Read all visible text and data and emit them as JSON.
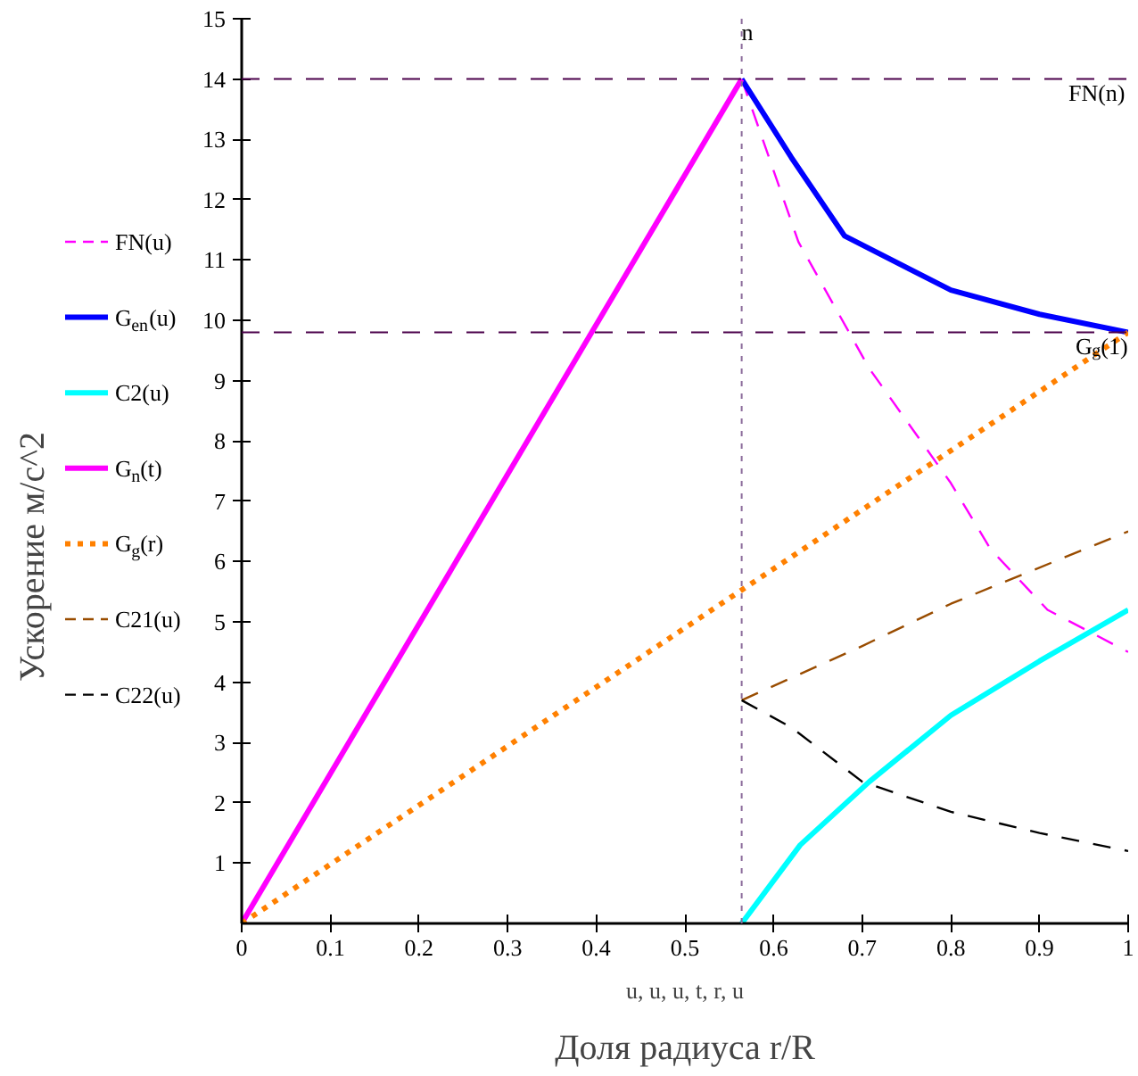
{
  "chart_data": {
    "type": "line",
    "xlabel": "Доля радиуса r/R",
    "ylabel": "Ускорение м/с^2",
    "annotations": [
      "u, u, u, t, r, u"
    ],
    "xlim": [
      0,
      1
    ],
    "ylim": [
      0,
      15
    ],
    "xticks": [
      0,
      0.1,
      0.2,
      0.3,
      0.4,
      0.5,
      0.6,
      0.7,
      0.8,
      0.9,
      1
    ],
    "yticks": [
      1,
      2,
      3,
      4,
      5,
      6,
      7,
      8,
      9,
      10,
      11,
      12,
      13,
      14,
      15
    ],
    "grid": false,
    "legend": "left",
    "marker": "none",
    "series": [
      {
        "name": "FN(u)",
        "color": "#ff00ff",
        "line_style": "dashed",
        "x": [
          0.564,
          0.628,
          0.708,
          0.8,
          0.845,
          0.909,
          1
        ],
        "values": [
          14,
          11.3,
          9.2,
          7.3,
          6.2,
          5.2,
          4.5
        ]
      },
      {
        "name": "G$_{en}$(u)",
        "color": "#0000ff",
        "line_style": "solid",
        "x": [
          0.564,
          0.62,
          0.68,
          0.8,
          0.9,
          1
        ],
        "values": [
          14,
          12.7,
          11.4,
          10.5,
          10.1,
          9.8
        ]
      },
      {
        "name": "C2(u)",
        "color": "#00ffff",
        "line_style": "solid",
        "x": [
          0.564,
          0.63,
          0.708,
          0.8,
          0.9,
          1
        ],
        "values": [
          0,
          1.3,
          2.35,
          3.45,
          4.35,
          5.2
        ]
      },
      {
        "name": "G$_{n}$(t)",
        "color": "#ff00ff",
        "line_style": "solid",
        "x": [
          0,
          0.564
        ],
        "values": [
          0,
          14
        ]
      },
      {
        "name": "G$_{g}$(r)",
        "color": "#ff8000",
        "line_style": "dotted",
        "x": [
          0,
          1
        ],
        "values": [
          0,
          9.8
        ]
      },
      {
        "name": "C21(u)",
        "color": "#994c00",
        "line_style": "dashed",
        "x": [
          0.564,
          0.7,
          0.8,
          1
        ],
        "values": [
          3.7,
          4.6,
          5.3,
          6.5
        ]
      },
      {
        "name": "C22(u)",
        "color": "#000000",
        "line_style": "dashed",
        "x": [
          0.564,
          0.62,
          0.7,
          0.8,
          0.9,
          1
        ],
        "values": [
          3.7,
          3.25,
          2.35,
          1.85,
          1.5,
          1.2
        ]
      }
    ],
    "ref_lines": [
      {
        "axis": "y",
        "value": 14,
        "label": "FN(n)",
        "color": "#4b004b",
        "line_style": "dashed"
      },
      {
        "axis": "y",
        "value": 9.8,
        "label": "G$_{g}$(1)",
        "color": "#4b004b",
        "line_style": "dashed"
      },
      {
        "axis": "x",
        "value": 0.564,
        "label": "n",
        "color": "#8b6b9b",
        "line_style": "dotted"
      }
    ]
  }
}
